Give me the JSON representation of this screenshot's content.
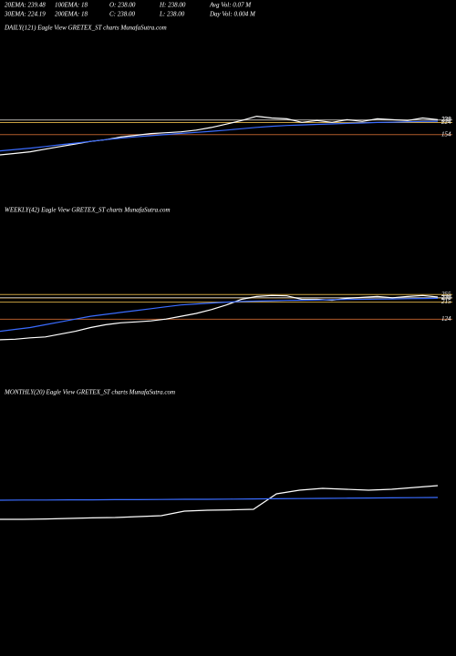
{
  "header": {
    "rows": [
      [
        "20EMA: 239.48",
        "100EMA: 18",
        "O: 238.00",
        "H: 238.00",
        "Avg Vol: 0.07 M"
      ],
      [
        "30EMA: 224.19",
        "200EMA: 18",
        "C: 238.00",
        "L: 238.00",
        "Day Vol: 0.004 M"
      ]
    ]
  },
  "chart_data": [
    {
      "type": "line",
      "title": "DAILY(121) Eagle   View  GRETEX_ST charts MunafaSutra.com",
      "ylim": [
        0,
        300
      ],
      "yticks": [
        154,
        224,
        238,
        239
      ],
      "series": [
        {
          "color": "#ffffff",
          "values": [
            37,
            45,
            55,
            70,
            85,
            100,
            115,
            125,
            140,
            150,
            160,
            165,
            170,
            180,
            195,
            215,
            235,
            260,
            250,
            245,
            225,
            235,
            225,
            240,
            230,
            245,
            240,
            235,
            250,
            240
          ]
        },
        {
          "color": "#3a6cff",
          "values": [
            60,
            68,
            76,
            85,
            95,
            105,
            115,
            125,
            133,
            141,
            148,
            155,
            161,
            167,
            173,
            180,
            188,
            196,
            202,
            207,
            210,
            213,
            216,
            219,
            221,
            224,
            226,
            228,
            230,
            231
          ]
        }
      ]
    },
    {
      "type": "line",
      "title": "WEEKLY(42) Eagle   View  GRETEX_ST charts MunafaSutra.com",
      "ylim": [
        0,
        300
      ],
      "yticks": [
        124,
        215,
        236,
        239,
        255
      ],
      "series": [
        {
          "color": "#ffffff",
          "values": [
            15,
            18,
            25,
            30,
            45,
            60,
            80,
            95,
            105,
            110,
            115,
            125,
            140,
            155,
            175,
            200,
            230,
            245,
            250,
            248,
            230,
            230,
            225,
            235,
            240,
            245,
            238,
            245,
            250,
            242
          ]
        },
        {
          "color": "#3a6cff",
          "values": [
            60,
            70,
            80,
            95,
            110,
            125,
            140,
            150,
            160,
            170,
            180,
            190,
            200,
            205,
            210,
            215,
            218,
            220,
            222,
            224,
            225,
            226,
            228,
            229,
            230,
            231,
            232,
            233,
            234,
            235
          ]
        }
      ]
    },
    {
      "type": "line",
      "title": "MONTHLY(20) Eagle   View  GRETEX_ST charts MunafaSutra.com",
      "ylim": [
        0,
        300
      ],
      "series": [
        {
          "color": "#ffffff",
          "values": [
            50,
            50,
            52,
            55,
            58,
            60,
            65,
            70,
            95,
            100,
            102,
            105,
            190,
            210,
            220,
            215,
            210,
            215,
            225,
            235
          ]
        },
        {
          "color": "#3a6cff",
          "values": [
            155,
            156,
            156,
            157,
            157,
            158,
            158,
            159,
            160,
            160,
            161,
            162,
            163,
            164,
            165,
            166,
            167,
            168,
            169,
            170
          ]
        }
      ]
    }
  ]
}
